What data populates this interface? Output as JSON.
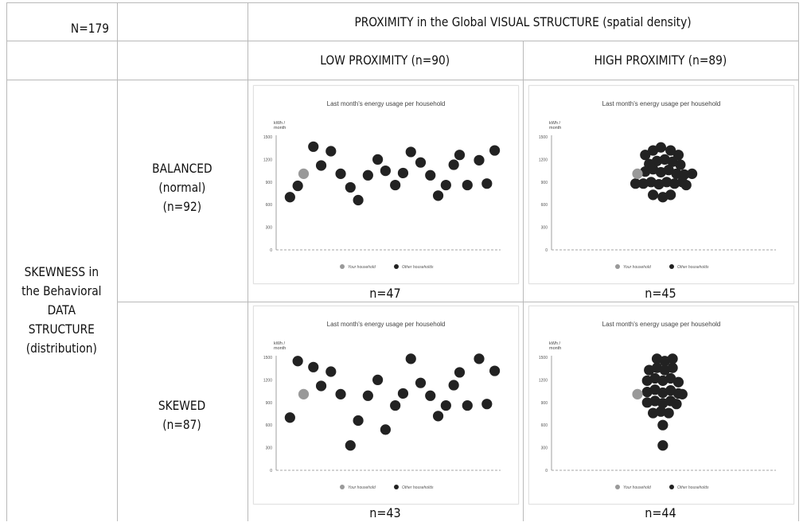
{
  "header": {
    "sample": "N=179",
    "proximity_title": "PROXIMITY in the Global VISUAL STRUCTURE (spatial density)",
    "low_proximity": "LOW PROXIMITY (n=90)",
    "high_proximity": "HIGH PROXIMITY (n=89)"
  },
  "rows": {
    "skewness_title": [
      "SKEWNESS in",
      "the Behavioral",
      "DATA",
      "STRUCTURE",
      "(distribution)"
    ],
    "balanced": [
      "BALANCED",
      "(normal)",
      "(n=92)"
    ],
    "skewed": [
      "SKEWED",
      "(n=87)"
    ]
  },
  "cell_counts": {
    "balanced_low": "n=47",
    "balanced_high": "n=45",
    "skewed_low": "n=43",
    "skewed_high": "n=44"
  },
  "colors": {
    "other": "#222222",
    "yours": "#999999",
    "axis": "#888888",
    "grid": "#bbbbbb",
    "border": "#b9b9b9"
  },
  "chart_data": [
    {
      "type": "scatter",
      "id": "balanced-low",
      "title": "Last month's energy usage per household",
      "ylabel": "kWh / month",
      "yticks": [
        0,
        300,
        600,
        900,
        1200,
        1500
      ],
      "ylim": [
        0,
        1500
      ],
      "xlim": [
        0,
        1
      ],
      "legend": [
        "Your household",
        "Other households"
      ],
      "legend_position": "bottom",
      "your_household": {
        "x": 0.1,
        "y": 1010
      },
      "other_households": [
        {
          "x": 0.03,
          "y": 700
        },
        {
          "x": 0.07,
          "y": 850
        },
        {
          "x": 0.15,
          "y": 1370
        },
        {
          "x": 0.19,
          "y": 1120
        },
        {
          "x": 0.24,
          "y": 1310
        },
        {
          "x": 0.29,
          "y": 1010
        },
        {
          "x": 0.34,
          "y": 830
        },
        {
          "x": 0.38,
          "y": 660
        },
        {
          "x": 0.43,
          "y": 990
        },
        {
          "x": 0.48,
          "y": 1200
        },
        {
          "x": 0.52,
          "y": 1050
        },
        {
          "x": 0.57,
          "y": 860
        },
        {
          "x": 0.61,
          "y": 1020
        },
        {
          "x": 0.65,
          "y": 1300
        },
        {
          "x": 0.7,
          "y": 1160
        },
        {
          "x": 0.75,
          "y": 990
        },
        {
          "x": 0.79,
          "y": 720
        },
        {
          "x": 0.83,
          "y": 860
        },
        {
          "x": 0.87,
          "y": 1130
        },
        {
          "x": 0.9,
          "y": 1260
        },
        {
          "x": 0.94,
          "y": 860
        },
        {
          "x": 1.0,
          "y": 1190
        },
        {
          "x": 1.04,
          "y": 880
        },
        {
          "x": 1.08,
          "y": 1320
        }
      ]
    },
    {
      "type": "scatter",
      "id": "balanced-high",
      "title": "Last month's energy usage per household",
      "ylabel": "kWh / month",
      "yticks": [
        0,
        300,
        600,
        900,
        1200,
        1500
      ],
      "ylim": [
        0,
        1500
      ],
      "xlim": [
        0,
        1
      ],
      "legend": [
        "Your household",
        "Other households"
      ],
      "legend_position": "bottom",
      "your_household": {
        "x": 0.4,
        "y": 1010
      },
      "other_households": [
        {
          "x": 0.44,
          "y": 1260
        },
        {
          "x": 0.48,
          "y": 1320
        },
        {
          "x": 0.52,
          "y": 1360
        },
        {
          "x": 0.57,
          "y": 1320
        },
        {
          "x": 0.61,
          "y": 1260
        },
        {
          "x": 0.46,
          "y": 1140
        },
        {
          "x": 0.5,
          "y": 1180
        },
        {
          "x": 0.54,
          "y": 1200
        },
        {
          "x": 0.58,
          "y": 1170
        },
        {
          "x": 0.62,
          "y": 1130
        },
        {
          "x": 0.44,
          "y": 1040
        },
        {
          "x": 0.48,
          "y": 1070
        },
        {
          "x": 0.52,
          "y": 1030
        },
        {
          "x": 0.56,
          "y": 1060
        },
        {
          "x": 0.6,
          "y": 1010
        },
        {
          "x": 0.64,
          "y": 1000
        },
        {
          "x": 0.68,
          "y": 1010
        },
        {
          "x": 0.39,
          "y": 880
        },
        {
          "x": 0.43,
          "y": 880
        },
        {
          "x": 0.47,
          "y": 900
        },
        {
          "x": 0.51,
          "y": 870
        },
        {
          "x": 0.55,
          "y": 900
        },
        {
          "x": 0.59,
          "y": 880
        },
        {
          "x": 0.63,
          "y": 900
        },
        {
          "x": 0.65,
          "y": 860
        },
        {
          "x": 0.48,
          "y": 730
        },
        {
          "x": 0.53,
          "y": 700
        },
        {
          "x": 0.57,
          "y": 730
        }
      ]
    },
    {
      "type": "scatter",
      "id": "skewed-low",
      "title": "Last month's energy usage per household",
      "ylabel": "kWh / month",
      "yticks": [
        0,
        300,
        600,
        900,
        1200,
        1500
      ],
      "ylim": [
        0,
        1500
      ],
      "xlim": [
        0,
        1
      ],
      "legend": [
        "Your household",
        "Other households"
      ],
      "legend_position": "bottom",
      "your_household": {
        "x": 0.1,
        "y": 1010
      },
      "other_households": [
        {
          "x": 0.03,
          "y": 700
        },
        {
          "x": 0.07,
          "y": 1450
        },
        {
          "x": 0.15,
          "y": 1370
        },
        {
          "x": 0.19,
          "y": 1120
        },
        {
          "x": 0.24,
          "y": 1310
        },
        {
          "x": 0.29,
          "y": 1010
        },
        {
          "x": 0.34,
          "y": 330
        },
        {
          "x": 0.38,
          "y": 660
        },
        {
          "x": 0.43,
          "y": 990
        },
        {
          "x": 0.48,
          "y": 1200
        },
        {
          "x": 0.52,
          "y": 540
        },
        {
          "x": 0.57,
          "y": 860
        },
        {
          "x": 0.61,
          "y": 1020
        },
        {
          "x": 0.65,
          "y": 1480
        },
        {
          "x": 0.7,
          "y": 1160
        },
        {
          "x": 0.75,
          "y": 990
        },
        {
          "x": 0.79,
          "y": 720
        },
        {
          "x": 0.83,
          "y": 860
        },
        {
          "x": 0.87,
          "y": 1130
        },
        {
          "x": 0.9,
          "y": 1300
        },
        {
          "x": 0.94,
          "y": 860
        },
        {
          "x": 1.0,
          "y": 1480
        },
        {
          "x": 1.04,
          "y": 880
        },
        {
          "x": 1.08,
          "y": 1320
        }
      ]
    },
    {
      "type": "scatter",
      "id": "skewed-high",
      "title": "Last month's energy usage per household",
      "ylabel": "kWh / month",
      "yticks": [
        0,
        300,
        600,
        900,
        1200,
        1500
      ],
      "ylim": [
        0,
        1500
      ],
      "xlim": [
        0,
        1
      ],
      "legend": [
        "Your household",
        "Other households"
      ],
      "legend_position": "bottom",
      "your_household": {
        "x": 0.4,
        "y": 1010
      },
      "other_households": [
        {
          "x": 0.5,
          "y": 1480
        },
        {
          "x": 0.54,
          "y": 1450
        },
        {
          "x": 0.58,
          "y": 1480
        },
        {
          "x": 0.46,
          "y": 1330
        },
        {
          "x": 0.5,
          "y": 1360
        },
        {
          "x": 0.54,
          "y": 1330
        },
        {
          "x": 0.58,
          "y": 1360
        },
        {
          "x": 0.45,
          "y": 1190
        },
        {
          "x": 0.49,
          "y": 1220
        },
        {
          "x": 0.53,
          "y": 1190
        },
        {
          "x": 0.57,
          "y": 1220
        },
        {
          "x": 0.61,
          "y": 1170
        },
        {
          "x": 0.45,
          "y": 1040
        },
        {
          "x": 0.49,
          "y": 1070
        },
        {
          "x": 0.53,
          "y": 1030
        },
        {
          "x": 0.57,
          "y": 1060
        },
        {
          "x": 0.61,
          "y": 1020
        },
        {
          "x": 0.63,
          "y": 1010
        },
        {
          "x": 0.45,
          "y": 900
        },
        {
          "x": 0.49,
          "y": 920
        },
        {
          "x": 0.53,
          "y": 890
        },
        {
          "x": 0.57,
          "y": 920
        },
        {
          "x": 0.6,
          "y": 880
        },
        {
          "x": 0.48,
          "y": 760
        },
        {
          "x": 0.52,
          "y": 780
        },
        {
          "x": 0.56,
          "y": 760
        },
        {
          "x": 0.53,
          "y": 600
        },
        {
          "x": 0.53,
          "y": 330
        }
      ]
    }
  ]
}
